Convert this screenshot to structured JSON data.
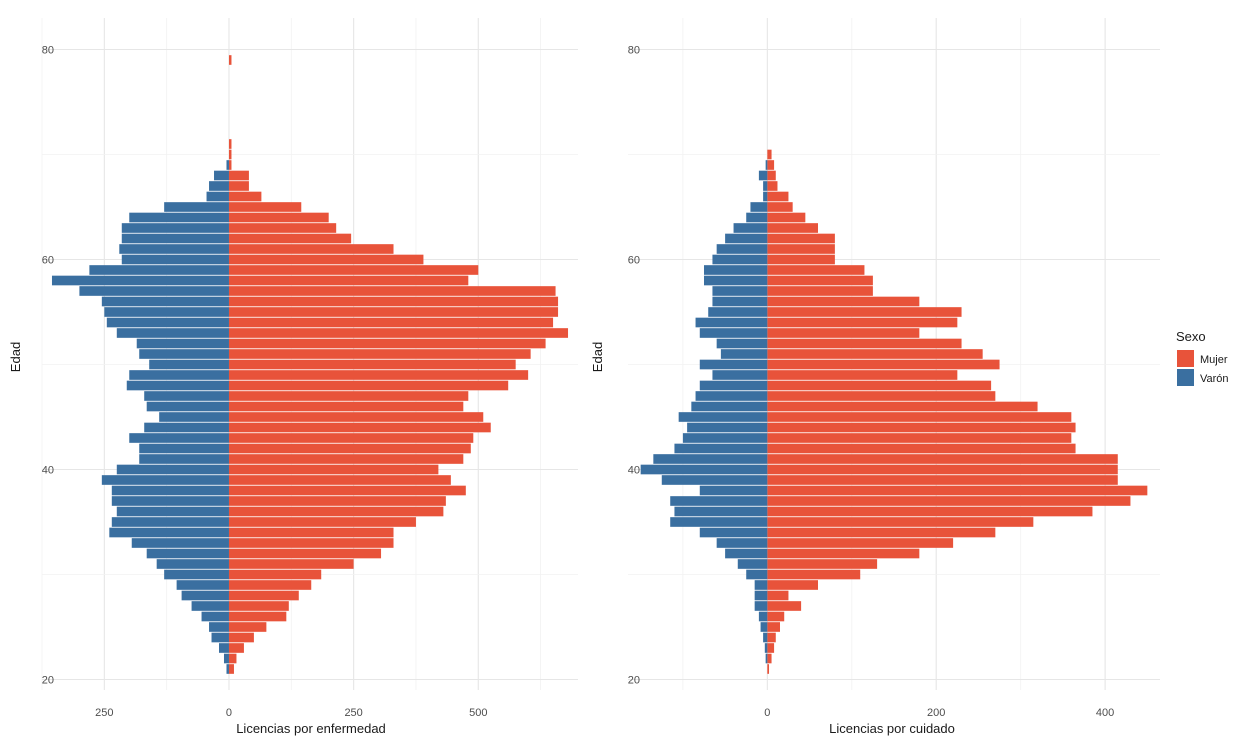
{
  "legend": {
    "title": "Sexo",
    "position": "right",
    "entries": [
      {
        "label": "Mujer",
        "color": "#e8533a"
      },
      {
        "label": "Varón",
        "color": "#3a6fa0"
      }
    ]
  },
  "chart_data": [
    {
      "type": "bar",
      "orientation": "horizontal",
      "xlabel": "Licencias por enfermedad",
      "ylabel": "Edad",
      "xlim": [
        -375,
        700
      ],
      "ylim": [
        19,
        83
      ],
      "x_ticks": [
        -250,
        0,
        250,
        500
      ],
      "x_tick_labels": [
        "250",
        "0",
        "250",
        "500"
      ],
      "y_ticks": [
        20,
        40,
        60,
        80
      ],
      "y_tick_labels": [
        "20",
        "40",
        "60",
        "80"
      ],
      "grid": true,
      "categories": [
        21,
        22,
        23,
        24,
        25,
        26,
        27,
        28,
        29,
        30,
        31,
        32,
        33,
        34,
        35,
        36,
        37,
        38,
        39,
        40,
        41,
        42,
        43,
        44,
        45,
        46,
        47,
        48,
        49,
        50,
        51,
        52,
        53,
        54,
        55,
        56,
        57,
        58,
        59,
        60,
        61,
        62,
        63,
        64,
        65,
        66,
        67,
        68,
        69,
        70,
        71,
        72,
        73,
        74,
        75,
        76,
        77,
        78,
        79
      ],
      "series": [
        {
          "name": "Mujer",
          "color": "#e8533a",
          "values": [
            10,
            15,
            30,
            50,
            75,
            115,
            120,
            140,
            165,
            185,
            250,
            305,
            330,
            330,
            375,
            430,
            435,
            475,
            445,
            420,
            470,
            485,
            490,
            525,
            510,
            470,
            480,
            560,
            600,
            575,
            605,
            635,
            680,
            650,
            660,
            660,
            655,
            480,
            500,
            390,
            330,
            245,
            215,
            200,
            145,
            65,
            40,
            40,
            5,
            5,
            5,
            0,
            0,
            0,
            0,
            0,
            0,
            0,
            5
          ]
        },
        {
          "name": "Varón",
          "color": "#3a6fa0",
          "values": [
            5,
            10,
            20,
            35,
            40,
            55,
            75,
            95,
            105,
            130,
            145,
            165,
            195,
            240,
            235,
            225,
            235,
            235,
            255,
            225,
            180,
            180,
            200,
            170,
            140,
            165,
            170,
            205,
            200,
            160,
            180,
            185,
            225,
            245,
            250,
            255,
            300,
            355,
            280,
            215,
            220,
            215,
            215,
            200,
            130,
            45,
            40,
            30,
            5,
            0,
            0,
            0,
            0,
            0,
            0,
            0,
            0,
            0,
            0
          ]
        }
      ]
    },
    {
      "type": "bar",
      "orientation": "horizontal",
      "xlabel": "Licencias por cuidado",
      "ylabel": "Edad",
      "xlim": [
        -165,
        465
      ],
      "ylim": [
        19,
        83
      ],
      "x_ticks": [
        0,
        200,
        400
      ],
      "x_tick_labels": [
        "0",
        "200",
        "400"
      ],
      "y_ticks": [
        20,
        40,
        60,
        80
      ],
      "y_tick_labels": [
        "20",
        "40",
        "60",
        "80"
      ],
      "grid": true,
      "categories": [
        21,
        22,
        23,
        24,
        25,
        26,
        27,
        28,
        29,
        30,
        31,
        32,
        33,
        34,
        35,
        36,
        37,
        38,
        39,
        40,
        41,
        42,
        43,
        44,
        45,
        46,
        47,
        48,
        49,
        50,
        51,
        52,
        53,
        54,
        55,
        56,
        57,
        58,
        59,
        60,
        61,
        62,
        63,
        64,
        65,
        66,
        67,
        68,
        69,
        70,
        71,
        72,
        73,
        74,
        75,
        76,
        77,
        78,
        79
      ],
      "series": [
        {
          "name": "Mujer",
          "color": "#e8533a",
          "values": [
            2,
            5,
            8,
            10,
            15,
            20,
            40,
            25,
            60,
            110,
            130,
            180,
            220,
            270,
            315,
            385,
            430,
            450,
            415,
            415,
            415,
            365,
            360,
            365,
            360,
            320,
            270,
            265,
            225,
            275,
            255,
            230,
            180,
            225,
            230,
            180,
            125,
            125,
            115,
            80,
            80,
            80,
            60,
            45,
            30,
            25,
            12,
            10,
            8,
            5,
            0,
            0,
            0,
            0,
            0,
            0,
            0,
            0,
            0
          ]
        },
        {
          "name": "Varón",
          "color": "#3a6fa0",
          "values": [
            0,
            2,
            3,
            5,
            8,
            10,
            15,
            15,
            15,
            25,
            35,
            50,
            60,
            80,
            115,
            110,
            115,
            80,
            125,
            150,
            135,
            110,
            100,
            95,
            105,
            90,
            85,
            80,
            65,
            80,
            55,
            60,
            80,
            85,
            70,
            65,
            65,
            75,
            75,
            65,
            60,
            50,
            40,
            25,
            20,
            5,
            5,
            10,
            2,
            0,
            0,
            0,
            0,
            0,
            0,
            0,
            0,
            0,
            0
          ]
        }
      ]
    }
  ]
}
